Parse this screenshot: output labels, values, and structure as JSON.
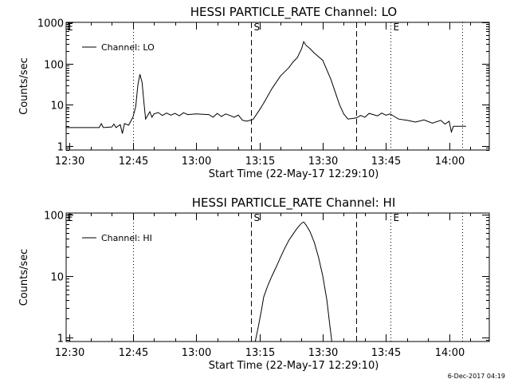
{
  "footer_date": "6-Dec-2017 04:19",
  "chart_data": [
    {
      "type": "line",
      "title": "HESSI PARTICLE_RATE Channel: LO",
      "xlabel": "Start Time (22-May-17 12:29:10)",
      "ylabel": "Counts/sec",
      "y_scale": "log",
      "xlim": [
        "12:29:10",
        "14:09:30"
      ],
      "ylim": [
        0.8,
        1000
      ],
      "x_tick_labels": [
        "12:30",
        "12:45",
        "13:00",
        "13:15",
        "13:30",
        "13:45",
        "14:00"
      ],
      "y_tick_labels": [
        "1",
        "10",
        "100",
        "1000"
      ],
      "legend": {
        "position": "top-left",
        "entries": [
          "Channel: LO"
        ]
      },
      "vertical_markers": [
        {
          "time": "12:45",
          "style": "dotted",
          "label": ""
        },
        {
          "time": "13:13",
          "style": "dashed",
          "label": "S"
        },
        {
          "time": "13:38",
          "style": "dashed",
          "label": ""
        },
        {
          "time": "13:46",
          "style": "dotted",
          "label": "E"
        },
        {
          "time": "14:03",
          "style": "dotted",
          "label": ""
        }
      ],
      "corner_labels": [
        {
          "text": "E",
          "position": "top-left"
        }
      ],
      "series": [
        {
          "name": "Channel: LO",
          "points": [
            [
              "12:29:10",
              2.8
            ],
            [
              "12:37:00",
              2.8
            ],
            [
              "12:37:30",
              3.5
            ],
            [
              "12:38:00",
              2.8
            ],
            [
              "12:40:00",
              2.9
            ],
            [
              "12:40:30",
              3.4
            ],
            [
              "12:41:00",
              2.8
            ],
            [
              "12:42:00",
              3.3
            ],
            [
              "12:42:30",
              2.0
            ],
            [
              "12:43:00",
              3.5
            ],
            [
              "12:44:00",
              3.2
            ],
            [
              "12:44:30",
              4.0
            ],
            [
              "12:45:00",
              5.0
            ],
            [
              "12:45:40",
              9.0
            ],
            [
              "12:46:10",
              30
            ],
            [
              "12:46:40",
              55
            ],
            [
              "12:47:10",
              35
            ],
            [
              "12:47:40",
              10
            ],
            [
              "12:48:00",
              4.5
            ],
            [
              "12:48:30",
              5.5
            ],
            [
              "12:49:00",
              6.8
            ],
            [
              "12:49:30",
              5.0
            ],
            [
              "12:50:00",
              6.0
            ],
            [
              "12:51:00",
              6.5
            ],
            [
              "12:52:00",
              5.5
            ],
            [
              "12:53:00",
              6.3
            ],
            [
              "12:54:00",
              5.6
            ],
            [
              "12:55:00",
              6.2
            ],
            [
              "12:56:00",
              5.4
            ],
            [
              "12:57:00",
              6.4
            ],
            [
              "12:58:00",
              5.8
            ],
            [
              "13:00:00",
              6.0
            ],
            [
              "13:03:00",
              5.8
            ],
            [
              "13:04:00",
              5.0
            ],
            [
              "13:05:00",
              6.2
            ],
            [
              "13:06:00",
              5.2
            ],
            [
              "13:07:00",
              6.0
            ],
            [
              "13:08:00",
              5.5
            ],
            [
              "13:09:00",
              5.0
            ],
            [
              "13:10:00",
              5.6
            ],
            [
              "13:11:00",
              4.2
            ],
            [
              "13:12:00",
              4.0
            ],
            [
              "13:13:30",
              4.4
            ],
            [
              "13:15:00",
              7.5
            ],
            [
              "13:16:00",
              11
            ],
            [
              "13:18:00",
              25
            ],
            [
              "13:20:00",
              50
            ],
            [
              "13:22:00",
              80
            ],
            [
              "13:23:00",
              110
            ],
            [
              "13:24:00",
              140
            ],
            [
              "13:25:00",
              230
            ],
            [
              "13:25:30",
              340
            ],
            [
              "13:26:00",
              280
            ],
            [
              "13:27:00",
              230
            ],
            [
              "13:28:00",
              180
            ],
            [
              "13:30:00",
              120
            ],
            [
              "13:31:00",
              70
            ],
            [
              "13:32:00",
              40
            ],
            [
              "13:33:00",
              20
            ],
            [
              "13:34:00",
              10
            ],
            [
              "13:35:00",
              6.0
            ],
            [
              "13:36:00",
              4.5
            ],
            [
              "13:38:00",
              4.8
            ],
            [
              "13:39:00",
              5.5
            ],
            [
              "13:40:00",
              5.0
            ],
            [
              "13:41:00",
              6.2
            ],
            [
              "13:43:00",
              5.4
            ],
            [
              "13:44:00",
              6.3
            ],
            [
              "13:45:00",
              5.6
            ],
            [
              "13:46:00",
              6.0
            ],
            [
              "13:47:00",
              5.2
            ],
            [
              "13:48:00",
              4.5
            ],
            [
              "13:50:00",
              4.2
            ],
            [
              "13:52:00",
              3.8
            ],
            [
              "13:54:00",
              4.3
            ],
            [
              "13:56:00",
              3.6
            ],
            [
              "13:58:00",
              4.2
            ],
            [
              "13:59:00",
              3.4
            ],
            [
              "14:00:00",
              4.0
            ],
            [
              "14:00:30",
              2.2
            ],
            [
              "14:01:00",
              3.0
            ],
            [
              "14:04:00",
              3.0
            ]
          ]
        }
      ]
    },
    {
      "type": "line",
      "title": "HESSI PARTICLE_RATE Channel: HI",
      "xlabel": "Start Time (22-May-17 12:29:10)",
      "ylabel": "Counts/sec",
      "y_scale": "log",
      "xlim": [
        "12:29:10",
        "14:09:30"
      ],
      "ylim": [
        0.85,
        105
      ],
      "x_tick_labels": [
        "12:30",
        "12:45",
        "13:00",
        "13:15",
        "13:30",
        "13:45",
        "14:00"
      ],
      "y_tick_labels": [
        "1",
        "10",
        "100"
      ],
      "legend": {
        "position": "top-left",
        "entries": [
          "Channel: HI"
        ]
      },
      "vertical_markers": [
        {
          "time": "12:45",
          "style": "dotted",
          "label": ""
        },
        {
          "time": "13:13",
          "style": "dashed",
          "label": "S"
        },
        {
          "time": "13:38",
          "style": "dashed",
          "label": ""
        },
        {
          "time": "13:46",
          "style": "dotted",
          "label": "E"
        },
        {
          "time": "14:03",
          "style": "dotted",
          "label": ""
        }
      ],
      "corner_labels": [
        {
          "text": "E",
          "position": "top-left"
        }
      ],
      "series": [
        {
          "name": "Channel: HI",
          "points": [
            [
              "13:14:00",
              0.85
            ],
            [
              "13:14:40",
              1.4
            ],
            [
              "13:15:30",
              2.8
            ],
            [
              "13:16:00",
              4.5
            ],
            [
              "13:17:00",
              7.0
            ],
            [
              "13:18:00",
              10
            ],
            [
              "13:19:00",
              14
            ],
            [
              "13:20:00",
              20
            ],
            [
              "13:21:00",
              28
            ],
            [
              "13:22:00",
              38
            ],
            [
              "13:23:00",
              48
            ],
            [
              "13:24:00",
              60
            ],
            [
              "13:25:00",
              72
            ],
            [
              "13:25:30",
              75
            ],
            [
              "13:26:00",
              68
            ],
            [
              "13:27:00",
              52
            ],
            [
              "13:28:00",
              35
            ],
            [
              "13:29:00",
              20
            ],
            [
              "13:30:00",
              10
            ],
            [
              "13:31:00",
              4.0
            ],
            [
              "13:31:40",
              1.6
            ],
            [
              "13:32:10",
              0.85
            ]
          ]
        }
      ]
    }
  ]
}
